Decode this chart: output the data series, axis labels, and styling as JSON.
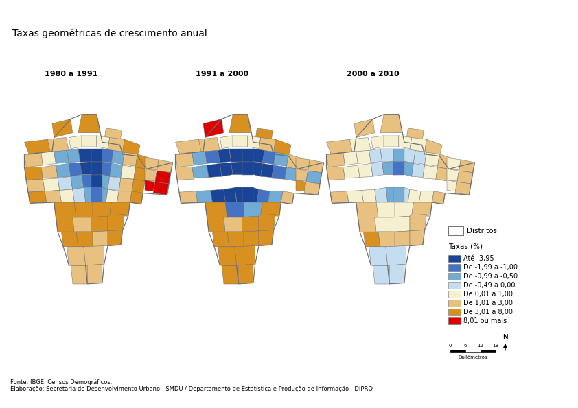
{
  "title": "Taxas geométricas de crescimento anual",
  "map_labels": [
    "1980 a 1991",
    "1991 a 2000",
    "2000 a 2010"
  ],
  "legend_title_districts": "Distritos",
  "legend_title_taxas": "Taxas (%)",
  "legend_items": [
    {
      "label": "Até -3,95",
      "color": "#1a4496"
    },
    {
      "label": "De -1,99 a -1,00",
      "color": "#4472c4"
    },
    {
      "label": "De -0,99 a -0,50",
      "color": "#72acd4"
    },
    {
      "label": "De -0,49 a 0,00",
      "color": "#c5ddf0"
    },
    {
      "label": "De 0,01 a 1,00",
      "color": "#f5f0d0"
    },
    {
      "label": "De 1,01 a 3,00",
      "color": "#e8c080"
    },
    {
      "label": "De 3,01 a 8,00",
      "color": "#d89020"
    },
    {
      "label": "8,01 ou mais",
      "color": "#dd0000"
    }
  ],
  "source_line1": "Fonte: IBGE. Censos Demográficos.",
  "source_line2": "Elaboração: Secretaria de Desenvolvimento Urbano - SMDU / Departamento de Estatística e Produção de Informação - DIPRO",
  "scale_label": "Quilômetros",
  "scale_ticks": [
    "0",
    "6",
    "12",
    "18"
  ],
  "background_color": "#ffffff",
  "border_color": "#707070",
  "title_fontsize": 10,
  "label_fontsize": 8,
  "legend_fontsize": 7,
  "source_fontsize": 6
}
